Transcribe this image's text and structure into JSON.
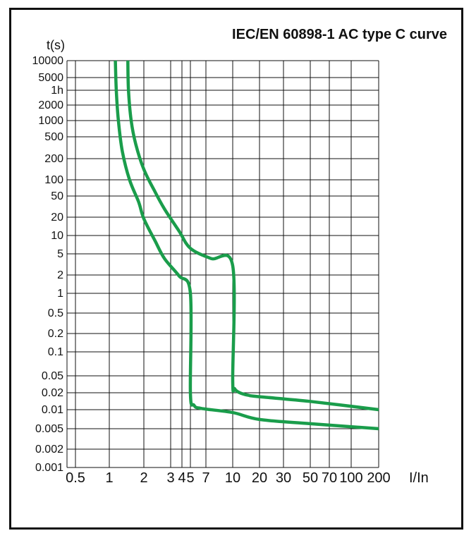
{
  "chart_data": {
    "type": "line",
    "title": "IEC/EN 60898-1 AC type C curve",
    "ylabel": "t(s)",
    "xlabel": "I/In",
    "y_scale": "log",
    "grid": true,
    "ytick_labels": [
      "10000",
      "5000",
      "1h",
      "2000",
      "1000",
      "500",
      "200",
      "100",
      "50",
      "20",
      "10",
      "5",
      "2",
      "1",
      "0.5",
      "0.2",
      "0.1",
      "0.05",
      "0.02",
      "0.01",
      "0.005",
      "0.002",
      "0.001"
    ],
    "xtick_labels": [
      "0.5",
      "1",
      "2",
      "3",
      "4",
      "5",
      "7",
      "10",
      "20",
      "30",
      "50",
      "70",
      "100",
      "200"
    ],
    "color": "#1a9d4b",
    "series": [
      {
        "points": [
          [
            1.13,
            10000
          ],
          [
            1.15,
            3600
          ],
          [
            1.2,
            1000
          ],
          [
            1.3,
            300
          ],
          [
            1.5,
            100
          ],
          [
            1.8,
            40
          ],
          [
            2,
            20
          ],
          [
            2.5,
            8
          ],
          [
            3,
            4
          ],
          [
            4,
            2
          ],
          [
            5,
            1
          ],
          [
            5,
            0.02
          ],
          [
            5.3,
            0.012
          ],
          [
            6,
            0.0105
          ],
          [
            10,
            0.009
          ],
          [
            20,
            0.007
          ],
          [
            50,
            0.006
          ],
          [
            200,
            0.005
          ]
        ]
      },
      {
        "points": [
          [
            1.45,
            10000
          ],
          [
            1.47,
            3600
          ],
          [
            1.55,
            1000
          ],
          [
            1.7,
            400
          ],
          [
            2,
            150
          ],
          [
            2.5,
            60
          ],
          [
            3,
            30
          ],
          [
            4,
            12
          ],
          [
            5,
            6
          ],
          [
            7,
            4
          ],
          [
            10,
            3
          ],
          [
            10,
            0.04
          ],
          [
            10.5,
            0.025
          ],
          [
            12,
            0.02
          ],
          [
            15,
            0.018
          ],
          [
            20,
            0.017
          ],
          [
            50,
            0.014
          ],
          [
            200,
            0.01
          ]
        ]
      }
    ]
  }
}
